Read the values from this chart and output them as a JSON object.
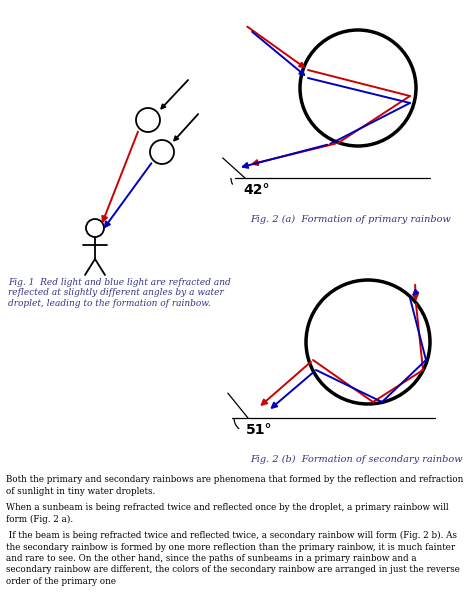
{
  "background_color": "#ffffff",
  "fig_width": 4.74,
  "fig_height": 6.09,
  "fig1_caption": "Fig. 1  Red light and blue light are refracted and\nreflected at slightly different angles by a water\ndroplet, leading to the formation of rainbow.",
  "fig2a_caption": "Fig. 2 (a)  Formation of primary rainbow",
  "fig2b_caption": "Fig. 2 (b)  Formation of secondary rainbow",
  "angle_primary": "42°",
  "angle_secondary": "51°",
  "text_body_lines": [
    "Both the primary and secondary rainbows are phenomena that formed by the reflection and refraction",
    "of sunlight in tiny water droplets.",
    "",
    "When a sunbeam is being refracted twice and reflected once by the droplet, a primary rainbow will",
    "form (Fig. 2 a).",
    "",
    " If the beam is being refracted twice and reflected twice, a secondary rainbow will form (Fig. 2 b). As",
    "the secondary rainbow is formed by one more reflection than the primary rainbow, it is much fainter",
    "and rare to see. On the other hand, since the paths of sunbeams in a primary rainbow and a",
    "secondary rainbow are different, the colors of the secondary rainbow are arranged in just the reverse",
    "order of the primary one"
  ],
  "red_color": "#cc0000",
  "blue_color": "#0000bb",
  "black_color": "#000000",
  "gray_color": "#444444",
  "circle_lw": 2.5,
  "ray_lw": 1.4,
  "stick_lw": 1.3
}
